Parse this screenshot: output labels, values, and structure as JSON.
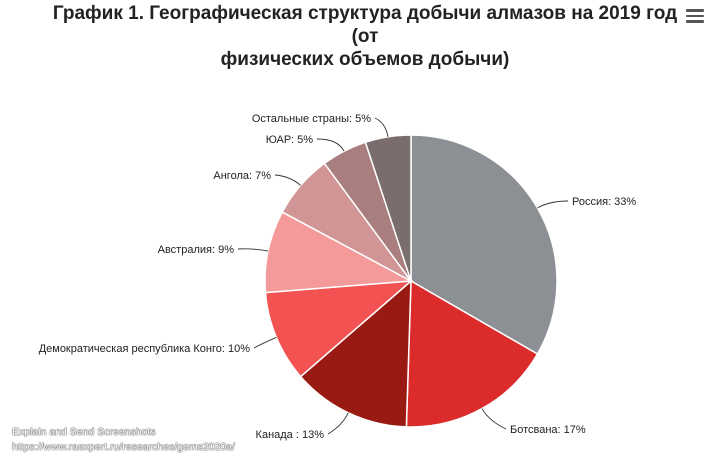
{
  "header": {
    "title_line1": "График 1. Географическая структура добычи алмазов на 2019 год (от",
    "title_line2": "физических объемов добычи)"
  },
  "menu": {
    "icon": "hamburger-menu-icon"
  },
  "chart_data": {
    "type": "pie",
    "title": "График 1. Географическая структура добычи алмазов на 2019 год (от физических объемов добычи)",
    "categories": [
      "Россия",
      "Ботсвана",
      "Канада",
      "Демократическая республика Конго",
      "Австралия",
      "Ангола",
      "ЮАР",
      "Остальные страны"
    ],
    "values": [
      33,
      17,
      13,
      10,
      9,
      7,
      5,
      5
    ],
    "unit": "%",
    "labels": [
      "Россия: 33%",
      "Ботсвана: 17%",
      "Канада : 13%",
      "Демократическая республика Конго: 10%",
      "Австралия: 9%",
      "Ангола: 7%",
      "ЮАР: 5%",
      "Остальные страны: 5%"
    ],
    "colors": [
      "#8c8f93",
      "#dc2b2b",
      "#991a12",
      "#f25252",
      "#f59a9a",
      "#d19595",
      "#a87e7e",
      "#7b6c6d"
    ],
    "start_angle_deg": 0,
    "direction": "clockwise"
  },
  "watermark": {
    "line1": "Explain and Send Screenshots",
    "line2": "https://www.raexpert.ru/researches/gems2020a/"
  }
}
